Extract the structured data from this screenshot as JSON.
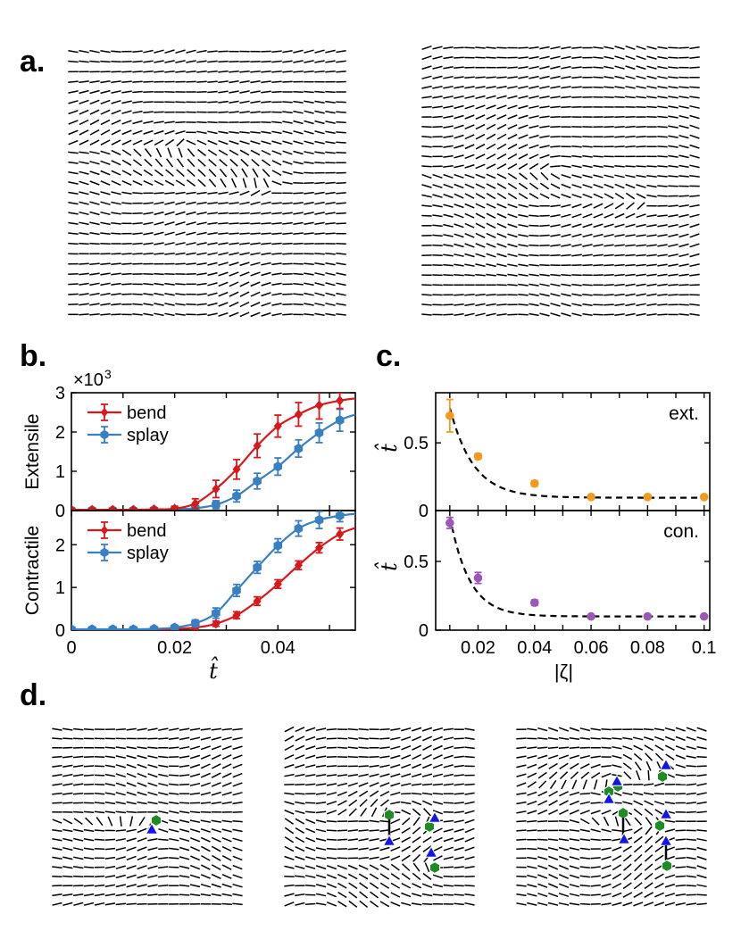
{
  "panel_labels": {
    "a": "a.",
    "b": "b.",
    "c": "c.",
    "d": "d."
  },
  "colors": {
    "red": "#d7191c",
    "blue": "#3a7fc2",
    "orange": "#f39a1e",
    "purple": "#9b59b6",
    "green": "#1e8c22",
    "triangle": "#1414e6"
  },
  "chart_data": [
    {
      "id": "b-top",
      "type": "line",
      "ylabel": "Extensile",
      "xlim": [
        0,
        0.055
      ],
      "ylim": [
        0,
        3
      ],
      "yticks": [
        0,
        1,
        2,
        3
      ],
      "ymultiplier": "×10",
      "ymultiplier_exp": "3",
      "legend": "top-left",
      "x": [
        0,
        0.004,
        0.008,
        0.012,
        0.016,
        0.02,
        0.024,
        0.028,
        0.032,
        0.036,
        0.04,
        0.044,
        0.048,
        0.052
      ],
      "series": [
        {
          "name": "bend",
          "color": "#d7191c",
          "values": [
            0.02,
            0.02,
            0.02,
            0.02,
            0.03,
            0.05,
            0.18,
            0.55,
            1.05,
            1.65,
            2.15,
            2.45,
            2.68,
            2.8
          ],
          "errors": [
            0.04,
            0.04,
            0.04,
            0.04,
            0.04,
            0.06,
            0.12,
            0.22,
            0.25,
            0.3,
            0.28,
            0.3,
            0.35,
            0.2
          ]
        },
        {
          "name": "splay",
          "color": "#3a7fc2",
          "values": [
            0.01,
            0.01,
            0.01,
            0.01,
            0.02,
            0.03,
            0.06,
            0.15,
            0.37,
            0.75,
            1.12,
            1.58,
            1.98,
            2.3
          ],
          "errors": [
            0.03,
            0.03,
            0.03,
            0.03,
            0.03,
            0.04,
            0.06,
            0.1,
            0.15,
            0.2,
            0.22,
            0.22,
            0.25,
            0.28
          ]
        }
      ]
    },
    {
      "id": "b-bottom",
      "type": "line",
      "ylabel": "Contractile",
      "xlabel": "t̂",
      "xlim": [
        0,
        0.055
      ],
      "ylim": [
        0,
        2.8
      ],
      "yticks": [
        0,
        1,
        2
      ],
      "xticks": [
        0,
        0.02,
        0.04
      ],
      "xticklabels": [
        "0",
        "0.02",
        "0.04"
      ],
      "legend": "top-left",
      "x": [
        0,
        0.004,
        0.008,
        0.012,
        0.016,
        0.02,
        0.024,
        0.028,
        0.032,
        0.036,
        0.04,
        0.044,
        0.048,
        0.052
      ],
      "series": [
        {
          "name": "bend",
          "color": "#d7191c",
          "values": [
            0.01,
            0.01,
            0.01,
            0.01,
            0.02,
            0.03,
            0.06,
            0.15,
            0.35,
            0.68,
            1.08,
            1.52,
            1.93,
            2.25
          ],
          "errors": [
            0.02,
            0.02,
            0.02,
            0.02,
            0.03,
            0.03,
            0.04,
            0.06,
            0.08,
            0.1,
            0.1,
            0.1,
            0.12,
            0.14
          ]
        },
        {
          "name": "splay",
          "color": "#3a7fc2",
          "values": [
            0.02,
            0.02,
            0.02,
            0.02,
            0.03,
            0.06,
            0.16,
            0.4,
            0.93,
            1.47,
            1.98,
            2.38,
            2.58,
            2.68
          ],
          "errors": [
            0.04,
            0.04,
            0.04,
            0.04,
            0.04,
            0.05,
            0.08,
            0.12,
            0.14,
            0.14,
            0.16,
            0.18,
            0.2,
            0.14
          ]
        }
      ]
    },
    {
      "id": "c-top",
      "type": "scatter",
      "ylabel": "t̂",
      "xlim": [
        0.005,
        0.102
      ],
      "ylim": [
        0,
        0.87
      ],
      "yticks": [
        0,
        0.5
      ],
      "yticklabels": [
        "0",
        "0.5"
      ],
      "annotation": "ext.",
      "x": [
        0.01,
        0.02,
        0.04,
        0.06,
        0.08,
        0.1
      ],
      "values": [
        0.7,
        0.4,
        0.2,
        0.1,
        0.1,
        0.1
      ],
      "errors": [
        0.12,
        0.02,
        0.02,
        0.01,
        0.01,
        0.01
      ],
      "color": "#f39a1e",
      "fit": {
        "type": "exponential",
        "a": 2.2,
        "b": 120,
        "c": 0.095
      }
    },
    {
      "id": "c-bottom",
      "type": "scatter",
      "ylabel": "t̂",
      "xlabel": "|ζ|",
      "xlim": [
        0.005,
        0.102
      ],
      "ylim": [
        0,
        0.87
      ],
      "yticks": [
        0,
        0.5
      ],
      "yticklabels": [
        "0",
        "0.5"
      ],
      "xticks": [
        0.02,
        0.04,
        0.06,
        0.08,
        0.1
      ],
      "xticklabels": [
        "0.02",
        "0.04",
        "0.06",
        "0.08",
        "0.1"
      ],
      "annotation": "con.",
      "x": [
        0.01,
        0.02,
        0.04,
        0.06,
        0.08,
        0.1
      ],
      "values": [
        0.78,
        0.38,
        0.2,
        0.1,
        0.1,
        0.1
      ],
      "errors": [
        0.04,
        0.04,
        0.02,
        0.01,
        0.01,
        0.01
      ],
      "color": "#9b59b6",
      "fit": {
        "type": "exponential",
        "a": 3.1,
        "b": 145,
        "c": 0.1
      }
    }
  ]
}
